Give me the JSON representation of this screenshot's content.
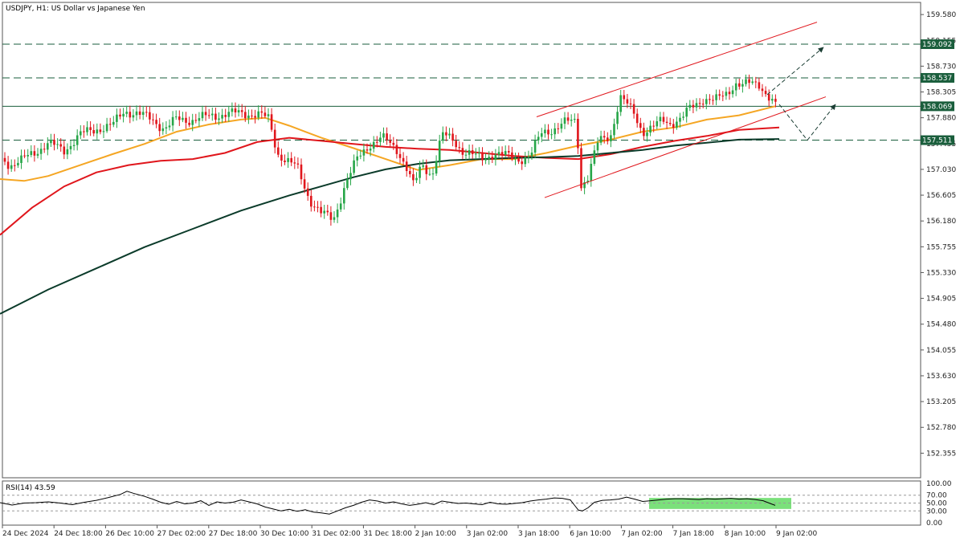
{
  "header": {
    "title": "USDJPY, H1:  US Dollar vs Japanese Yen"
  },
  "colors": {
    "bull": "#26a648",
    "bear": "#e0161c",
    "sma50": "#f5a623",
    "sma100": "#e0161c",
    "sma200": "#0b3b2a",
    "level": "#1a5e3c",
    "channel": "#e0161c",
    "rsi_zone": "#7be07b"
  },
  "chart_data": [
    {
      "type": "candlestick",
      "title": "USDJPY, H1:  US Dollar vs Japanese Yen",
      "ylim": [
        151.95,
        159.78
      ],
      "price_ticks": [
        "159.580",
        "159.155",
        "158.730",
        "158.305",
        "157.880",
        "157.455",
        "157.030",
        "156.605",
        "156.180",
        "155.755",
        "155.330",
        "154.905",
        "154.480",
        "154.055",
        "153.630",
        "153.205",
        "152.780",
        "152.355"
      ],
      "time_ticks": [
        "24 Dec 2024",
        "24 Dec 18:00",
        "26 Dec 10:00",
        "27 Dec 02:00",
        "27 Dec 18:00",
        "30 Dec 10:00",
        "31 Dec 02:00",
        "31 Dec 18:00",
        "2 Jan 10:00",
        "3 Jan 02:00",
        "3 Jan 18:00",
        "6 Jan 10:00",
        "7 Jan 02:00",
        "7 Jan 18:00",
        "8 Jan 10:00",
        "9 Jan 02:00"
      ],
      "close_path": [
        [
          0,
          157.3
        ],
        [
          12,
          157.1
        ],
        [
          25,
          157.15
        ],
        [
          40,
          157.3
        ],
        [
          60,
          157.45
        ],
        [
          80,
          157.35
        ],
        [
          100,
          157.6
        ],
        [
          120,
          157.7
        ],
        [
          140,
          157.75
        ],
        [
          155,
          158.0
        ],
        [
          170,
          157.95
        ],
        [
          190,
          157.85
        ],
        [
          205,
          157.7
        ],
        [
          220,
          157.85
        ],
        [
          240,
          157.85
        ],
        [
          260,
          157.9
        ],
        [
          280,
          157.95
        ],
        [
          300,
          157.95
        ],
        [
          320,
          157.95
        ],
        [
          335,
          157.85
        ],
        [
          345,
          157.3
        ],
        [
          355,
          157.2
        ],
        [
          370,
          157.05
        ],
        [
          385,
          156.55
        ],
        [
          400,
          156.3
        ],
        [
          415,
          156.2
        ],
        [
          430,
          156.8
        ],
        [
          445,
          157.2
        ],
        [
          460,
          157.45
        ],
        [
          475,
          157.55
        ],
        [
          485,
          157.45
        ],
        [
          495,
          157.35
        ],
        [
          505,
          157.1
        ],
        [
          515,
          156.75
        ],
        [
          525,
          157.1
        ],
        [
          538,
          156.95
        ],
        [
          550,
          157.6
        ],
        [
          565,
          157.5
        ],
        [
          575,
          157.35
        ],
        [
          590,
          157.25
        ],
        [
          600,
          157.2
        ],
        [
          615,
          157.3
        ],
        [
          630,
          157.25
        ],
        [
          645,
          157.2
        ],
        [
          660,
          157.25
        ],
        [
          675,
          157.65
        ],
        [
          690,
          157.7
        ],
        [
          705,
          157.8
        ],
        [
          718,
          157.85
        ],
        [
          722,
          156.75
        ],
        [
          732,
          156.9
        ],
        [
          745,
          157.5
        ],
        [
          760,
          157.6
        ],
        [
          772,
          158.2
        ],
        [
          780,
          158.1
        ],
        [
          790,
          157.95
        ],
        [
          800,
          157.65
        ],
        [
          812,
          157.7
        ],
        [
          825,
          157.85
        ],
        [
          835,
          157.8
        ],
        [
          848,
          157.85
        ],
        [
          860,
          158.05
        ],
        [
          875,
          158.2
        ],
        [
          890,
          158.15
        ],
        [
          905,
          158.3
        ],
        [
          915,
          158.45
        ],
        [
          925,
          158.4
        ],
        [
          935,
          158.45
        ],
        [
          945,
          158.45
        ],
        [
          955,
          158.25
        ],
        [
          965,
          158.07
        ]
      ],
      "series": [
        {
          "name": "",
          "color_key": "sma50",
          "points": [
            [
              0,
              156.87
            ],
            [
              30,
              156.84
            ],
            [
              60,
              156.92
            ],
            [
              100,
              157.1
            ],
            [
              140,
              157.28
            ],
            [
              180,
              157.45
            ],
            [
              220,
              157.65
            ],
            [
              260,
              157.77
            ],
            [
              300,
              157.85
            ],
            [
              330,
              157.88
            ],
            [
              360,
              157.75
            ],
            [
              400,
              157.55
            ],
            [
              440,
              157.38
            ],
            [
              480,
              157.2
            ],
            [
              520,
              157.02
            ],
            [
              560,
              157.1
            ],
            [
              600,
              157.2
            ],
            [
              640,
              157.2
            ],
            [
              680,
              157.3
            ],
            [
              720,
              157.42
            ],
            [
              760,
              157.52
            ],
            [
              800,
              157.65
            ],
            [
              840,
              157.72
            ],
            [
              880,
              157.85
            ],
            [
              920,
              157.92
            ],
            [
              965,
              158.07
            ]
          ]
        },
        {
          "name": "",
          "color_key": "sma100",
          "points": [
            [
              0,
              155.95
            ],
            [
              40,
              156.4
            ],
            [
              80,
              156.75
            ],
            [
              120,
              156.98
            ],
            [
              160,
              157.1
            ],
            [
              200,
              157.17
            ],
            [
              240,
              157.2
            ],
            [
              280,
              157.3
            ],
            [
              320,
              157.48
            ],
            [
              360,
              157.55
            ],
            [
              400,
              157.5
            ],
            [
              440,
              157.45
            ],
            [
              480,
              157.4
            ],
            [
              520,
              157.37
            ],
            [
              560,
              157.35
            ],
            [
              600,
              157.3
            ],
            [
              640,
              157.25
            ],
            [
              680,
              157.22
            ],
            [
              720,
              157.2
            ],
            [
              760,
              157.28
            ],
            [
              800,
              157.4
            ],
            [
              840,
              157.5
            ],
            [
              880,
              157.58
            ],
            [
              920,
              157.68
            ],
            [
              970,
              157.72
            ]
          ]
        },
        {
          "name": "",
          "color_key": "sma200",
          "points": [
            [
              0,
              154.65
            ],
            [
              60,
              155.05
            ],
            [
              120,
              155.4
            ],
            [
              180,
              155.75
            ],
            [
              240,
              156.05
            ],
            [
              300,
              156.35
            ],
            [
              360,
              156.6
            ],
            [
              400,
              156.75
            ],
            [
              440,
              156.9
            ],
            [
              480,
              157.03
            ],
            [
              520,
              157.12
            ],
            [
              560,
              157.18
            ],
            [
              600,
              157.2
            ],
            [
              640,
              157.22
            ],
            [
              680,
              157.23
            ],
            [
              720,
              157.25
            ],
            [
              760,
              157.3
            ],
            [
              800,
              157.35
            ],
            [
              840,
              157.42
            ],
            [
              880,
              157.47
            ],
            [
              920,
              157.52
            ],
            [
              970,
              157.53
            ]
          ]
        }
      ],
      "levels": [
        {
          "value": 159.092,
          "label": "159.092",
          "dash": true
        },
        {
          "value": 158.537,
          "label": "158.537",
          "dash": true
        },
        {
          "value": 158.069,
          "label": "158.069",
          "dash": false
        },
        {
          "value": 157.511,
          "label": "157.511",
          "dash": true
        }
      ],
      "channel": {
        "upper": [
          [
            668,
            157.895
          ],
          [
            1017,
            159.454
          ]
        ],
        "lower": [
          [
            678,
            156.565
          ],
          [
            1028,
            158.225
          ]
        ]
      },
      "projections": [
        [
          [
            955,
            158.26
          ],
          [
            1025,
            159.04
          ]
        ],
        [
          [
            970,
            158.1
          ],
          [
            1005,
            157.51
          ]
        ],
        [
          [
            1005,
            157.51
          ],
          [
            1040,
            158.1
          ]
        ]
      ]
    },
    {
      "type": "line",
      "title": "RSI(14) 43.59",
      "ylim": [
        0,
        100
      ],
      "ticks": [
        "100.00",
        "70.00",
        "50.00",
        "30.00",
        "0.00"
      ],
      "levels": [
        70,
        50,
        30
      ],
      "values": [
        [
          0,
          51
        ],
        [
          15,
          45
        ],
        [
          30,
          50
        ],
        [
          45,
          51
        ],
        [
          60,
          53
        ],
        [
          75,
          50
        ],
        [
          90,
          46
        ],
        [
          105,
          52
        ],
        [
          120,
          57
        ],
        [
          135,
          64
        ],
        [
          150,
          72
        ],
        [
          158,
          80
        ],
        [
          166,
          75
        ],
        [
          180,
          67
        ],
        [
          190,
          60
        ],
        [
          200,
          52
        ],
        [
          210,
          47
        ],
        [
          220,
          54
        ],
        [
          230,
          48
        ],
        [
          240,
          50
        ],
        [
          250,
          56
        ],
        [
          260,
          44
        ],
        [
          270,
          53
        ],
        [
          280,
          50
        ],
        [
          290,
          52
        ],
        [
          300,
          58
        ],
        [
          310,
          53
        ],
        [
          320,
          48
        ],
        [
          330,
          40
        ],
        [
          340,
          35
        ],
        [
          350,
          30
        ],
        [
          360,
          34
        ],
        [
          370,
          29
        ],
        [
          380,
          33
        ],
        [
          390,
          27
        ],
        [
          400,
          25
        ],
        [
          410,
          22
        ],
        [
          420,
          30
        ],
        [
          430,
          38
        ],
        [
          440,
          44
        ],
        [
          450,
          52
        ],
        [
          460,
          58
        ],
        [
          470,
          55
        ],
        [
          480,
          50
        ],
        [
          490,
          53
        ],
        [
          500,
          48
        ],
        [
          510,
          44
        ],
        [
          520,
          47
        ],
        [
          530,
          51
        ],
        [
          540,
          46
        ],
        [
          550,
          55
        ],
        [
          560,
          52
        ],
        [
          570,
          49
        ],
        [
          580,
          50
        ],
        [
          590,
          48
        ],
        [
          600,
          46
        ],
        [
          610,
          52
        ],
        [
          620,
          48
        ],
        [
          630,
          47
        ],
        [
          640,
          49
        ],
        [
          650,
          51
        ],
        [
          660,
          55
        ],
        [
          670,
          58
        ],
        [
          680,
          60
        ],
        [
          690,
          63
        ],
        [
          700,
          62
        ],
        [
          710,
          58
        ],
        [
          715,
          45
        ],
        [
          720,
          32
        ],
        [
          725,
          30
        ],
        [
          732,
          38
        ],
        [
          740,
          52
        ],
        [
          750,
          57
        ],
        [
          760,
          58
        ],
        [
          770,
          60
        ],
        [
          780,
          65
        ],
        [
          790,
          60
        ],
        [
          800,
          54
        ],
        [
          810,
          56
        ],
        [
          820,
          58
        ],
        [
          830,
          60
        ],
        [
          840,
          61
        ],
        [
          850,
          61
        ],
        [
          860,
          60
        ],
        [
          870,
          59
        ],
        [
          880,
          61
        ],
        [
          890,
          60
        ],
        [
          900,
          61
        ],
        [
          910,
          62
        ],
        [
          920,
          60
        ],
        [
          930,
          61
        ],
        [
          940,
          59
        ],
        [
          950,
          56
        ],
        [
          960,
          48
        ],
        [
          965,
          44
        ]
      ],
      "zone": {
        "x0": 808,
        "x1": 985,
        "y_low": 35,
        "y_high": 63
      }
    }
  ]
}
